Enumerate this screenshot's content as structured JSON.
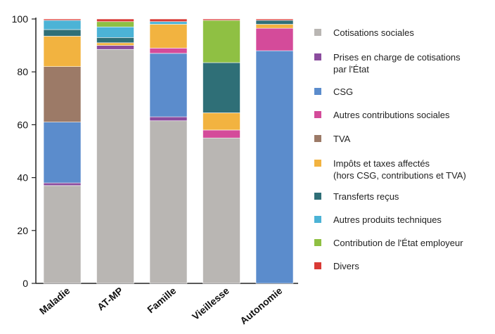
{
  "chart_data": {
    "type": "bar",
    "stacked": true,
    "categories": [
      "Maladie",
      "AT-MP",
      "Famille",
      "Vieillesse",
      "Autonomie"
    ],
    "ylim": [
      0,
      100
    ],
    "yticks": [
      0,
      20,
      40,
      60,
      80,
      100
    ],
    "grid": false,
    "legend_position": "right",
    "series": [
      {
        "name": "Cotisations sociales",
        "label_lines": [
          "Cotisations sociales"
        ],
        "color": "#b9b6b3",
        "values": [
          37,
          88.5,
          61.5,
          55,
          0
        ]
      },
      {
        "name": "Prises en charge de cotisations par l'État",
        "label_lines": [
          "Prises en charge de cotisations",
          "par l'État"
        ],
        "color": "#8b4c9e",
        "values": [
          1,
          1.5,
          1.5,
          0,
          0
        ]
      },
      {
        "name": "CSG",
        "label_lines": [
          "CSG"
        ],
        "color": "#5b8ccc",
        "values": [
          23,
          0,
          24,
          0,
          88
        ]
      },
      {
        "name": "Autres contributions sociales",
        "label_lines": [
          "Autres contributions sociales"
        ],
        "color": "#d44b9a",
        "values": [
          0,
          0,
          2,
          3,
          8.5
        ]
      },
      {
        "name": "TVA",
        "label_lines": [
          "TVA"
        ],
        "color": "#9c7a67",
        "values": [
          21,
          0,
          0,
          0,
          0
        ]
      },
      {
        "name": "Impôts et taxes affectés (hors CSG, contributions et TVA)",
        "label_lines": [
          "Impôts et taxes affectés",
          "(hors CSG, contributions et TVA)"
        ],
        "color": "#f2b340",
        "values": [
          11.5,
          1,
          9,
          6.5,
          1.5
        ]
      },
      {
        "name": "Transferts reçus",
        "label_lines": [
          "Transferts reçus"
        ],
        "color": "#2f6f77",
        "values": [
          2.5,
          2,
          0,
          19,
          1.5
        ]
      },
      {
        "name": "Autres produits techniques",
        "label_lines": [
          "Autres produits techniques"
        ],
        "color": "#4cb3d6",
        "values": [
          3.5,
          4,
          1,
          0,
          0
        ]
      },
      {
        "name": "Contribution de l'État employeur",
        "label_lines": [
          "Contribution de l'État employeur"
        ],
        "color": "#8fc043",
        "values": [
          0,
          2,
          0,
          16,
          0
        ]
      },
      {
        "name": "Divers",
        "label_lines": [
          "Divers"
        ],
        "color": "#d93a35",
        "values": [
          0.5,
          1,
          1,
          0.5,
          0.5
        ]
      }
    ]
  }
}
